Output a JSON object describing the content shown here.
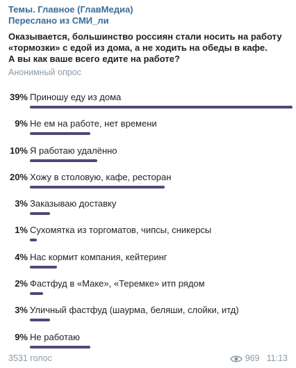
{
  "message": {
    "channel": "Темы. Главное (ГлавМедиа)",
    "forwarded_from": "Переслано из СМИ_ли",
    "question_lines": [
      "Оказывается, большинство россиян стали носить на работу",
      "«тормозки» с едой из дома, а не ходить на обеды в кафе.",
      "А вы как ваше всего едите на работе?"
    ],
    "poll_type": "Анонимный опрос",
    "bar_color": "#4a4a79",
    "link_color": "#3a6d99"
  },
  "poll": {
    "options": [
      {
        "percent_label": "39%",
        "percent": 39,
        "label": "Приношу еду из дома"
      },
      {
        "percent_label": "9%",
        "percent": 9,
        "label": "Не ем на работе, нет времени"
      },
      {
        "percent_label": "10%",
        "percent": 10,
        "label": "Я работаю удалённо"
      },
      {
        "percent_label": "20%",
        "percent": 20,
        "label": "Хожу в столовую, кафе, ресторан"
      },
      {
        "percent_label": "3%",
        "percent": 3,
        "label": "Заказываю доставку"
      },
      {
        "percent_label": "1%",
        "percent": 1,
        "label": "Сухомятка из торгоматов, чипсы, сникерсы"
      },
      {
        "percent_label": "4%",
        "percent": 4,
        "label": "Нас кормит компания, кейтеринг"
      },
      {
        "percent_label": "2%",
        "percent": 2,
        "label": "Фастфуд в «Маке», «Теремке» итп рядом"
      },
      {
        "percent_label": "3%",
        "percent": 3,
        "label": "Уличный фастфуд (шаурма, беляши, слойки, итд)"
      },
      {
        "percent_label": "9%",
        "percent": 9,
        "label": "Не работаю"
      }
    ]
  },
  "footer": {
    "votes": "3531 голос",
    "views": "969",
    "time": "11:13",
    "views_icon": "eye-icon"
  }
}
